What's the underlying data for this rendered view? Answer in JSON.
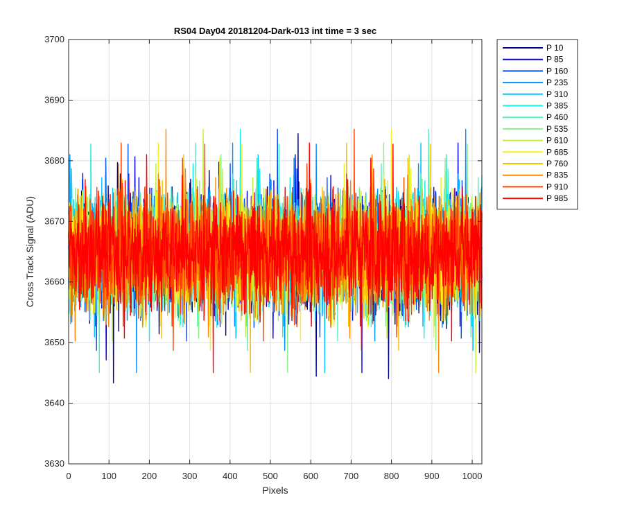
{
  "chart_data": {
    "type": "line",
    "title": "RS04 Day04 20181204-Dark-013 int time = 3 sec",
    "xlabel": "Pixels",
    "ylabel": "Cross Track Signal (ADU)",
    "xlim": [
      0,
      1024
    ],
    "ylim": [
      3630,
      3700
    ],
    "xticks": [
      0,
      100,
      200,
      300,
      400,
      500,
      600,
      700,
      800,
      900,
      1000
    ],
    "yticks": [
      3630,
      3640,
      3650,
      3660,
      3670,
      3680,
      3690,
      3700
    ],
    "grid": true,
    "legend_position": "outside-top-right",
    "points_per_series": 1024,
    "series_note": "Dense noise traces; approximate mean 3665 ADU, typical range 3645-3685 ADU",
    "series": [
      {
        "name": "P 10",
        "color": "#00008F",
        "mean": 3665,
        "spread": 7.5
      },
      {
        "name": "P 85",
        "color": "#0000EF",
        "mean": 3665,
        "spread": 7.5
      },
      {
        "name": "P 160",
        "color": "#0050FF",
        "mean": 3665,
        "spread": 7.5
      },
      {
        "name": "P 235",
        "color": "#0090FF",
        "mean": 3665,
        "spread": 7.5
      },
      {
        "name": "P 310",
        "color": "#00C4FF",
        "mean": 3665,
        "spread": 7.5
      },
      {
        "name": "P 385",
        "color": "#10F0F0",
        "mean": 3665,
        "spread": 7.5
      },
      {
        "name": "P 460",
        "color": "#50F0C0",
        "mean": 3665,
        "spread": 7.5
      },
      {
        "name": "P 535",
        "color": "#8AF08A",
        "mean": 3665,
        "spread": 7.5
      },
      {
        "name": "P 610",
        "color": "#C0F040",
        "mean": 3665,
        "spread": 7.5
      },
      {
        "name": "P 685",
        "color": "#F8F020",
        "mean": 3665,
        "spread": 7.5
      },
      {
        "name": "P 760",
        "color": "#F8C000",
        "mean": 3665,
        "spread": 7.5
      },
      {
        "name": "P 835",
        "color": "#FF8800",
        "mean": 3665,
        "spread": 7.5
      },
      {
        "name": "P 910",
        "color": "#FF4000",
        "mean": 3665,
        "spread": 7.5
      },
      {
        "name": "P 985",
        "color": "#FF0000",
        "mean": 3665,
        "spread": 7.5
      }
    ]
  }
}
